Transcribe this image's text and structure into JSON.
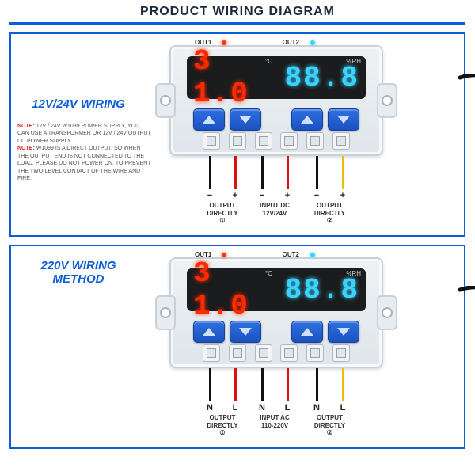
{
  "title": "PRODUCT WIRING DIAGRAM",
  "colors": {
    "accent": "#0b5ed7",
    "note_red": "#d22",
    "wire_black": "#111111",
    "wire_red": "#e01010",
    "wire_yellow": "#eac000",
    "seg_red": "#ff2a00",
    "seg_blue": "#3ad2ff"
  },
  "device": {
    "out1_label": "OUT1",
    "out2_label": "OUT2",
    "display_left": "3 1.0",
    "display_right": "88.8",
    "unit_left": "°C",
    "unit_right": "%RH"
  },
  "sections": [
    {
      "heading": "12V/24V WIRING",
      "notes": [
        {
          "prefix": "NOTE:",
          "text": " 12V / 24V W1099 POWER SUPPLY, YOU CAN USE A TRANSFORMER OR 12V / 24V OUTPUT DC POWER SUPPLY"
        },
        {
          "prefix": "NOTE:",
          "text": " W1099 IS A DIRECT OUTPUT, SO WHEN THE OUTPUT END IS NOT CONNECTED TO THE LOAD, PLEASE DO NOT POWER ON, TO PREVENT THE TWO-LEVEL CONTACT OF THE WIRE AND FIRE."
        }
      ],
      "terminal_pairs": [
        {
          "labels": [
            "−",
            "+"
          ],
          "colors": [
            "#111111",
            "#e01010"
          ],
          "group": "OUTPUT DIRECTLY",
          "num": "①"
        },
        {
          "labels": [
            "−",
            "+"
          ],
          "colors": [
            "#111111",
            "#e01010"
          ],
          "group": "INPUT DC 12V/24V",
          "num": ""
        },
        {
          "labels": [
            "−",
            "+"
          ],
          "colors": [
            "#111111",
            "#eac000"
          ],
          "group": "OUTPUT DIRECTLY",
          "num": "②"
        }
      ]
    },
    {
      "heading": "220V WIRING METHOD",
      "notes": [],
      "terminal_pairs": [
        {
          "labels": [
            "N",
            "L"
          ],
          "colors": [
            "#111111",
            "#e01010"
          ],
          "group": "OUTPUT DIRECTLY",
          "num": "①"
        },
        {
          "labels": [
            "N",
            "L"
          ],
          "colors": [
            "#111111",
            "#e01010"
          ],
          "group": "INPUT AC 110-220V",
          "num": ""
        },
        {
          "labels": [
            "N",
            "L"
          ],
          "colors": [
            "#111111",
            "#eac000"
          ],
          "group": "OUTPUT DIRECTLY",
          "num": "②"
        }
      ]
    }
  ]
}
